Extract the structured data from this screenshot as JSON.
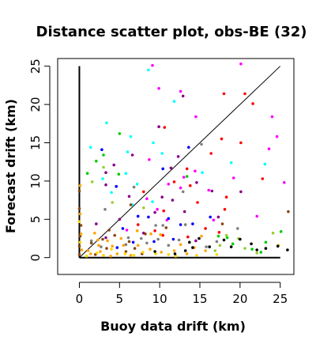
{
  "chart_data": {
    "type": "scatter",
    "title": "Distance scatter plot, obs-BE (32)",
    "xlabel": "Buoy data drift (km)",
    "ylabel": "Forecast drift (km)",
    "xlim": [
      -2.7,
      26.7
    ],
    "ylim": [
      -2.2,
      26.0
    ],
    "xticks": [
      "0",
      "5",
      "10",
      "15",
      "20",
      "25"
    ],
    "yticks": [
      "0",
      "5",
      "10",
      "15",
      "20",
      "25"
    ],
    "grid": false,
    "legend": "none",
    "reference_lines": [
      {
        "name": "identity",
        "points": [
          [
            0,
            0
          ],
          [
            25,
            25
          ]
        ]
      },
      {
        "name": "y-axis guide",
        "points": [
          [
            0,
            0
          ],
          [
            0,
            25
          ]
        ]
      },
      {
        "name": "x-axis guide",
        "points": [
          [
            0,
            0
          ],
          [
            25,
            0
          ]
        ]
      }
    ],
    "series": [
      {
        "color": "#ff00ff",
        "points": [
          [
            9.1,
            25.1
          ],
          [
            20.1,
            25.3
          ],
          [
            9.9,
            22.1
          ],
          [
            12.6,
            21.7
          ],
          [
            24.0,
            18.4
          ],
          [
            24.6,
            15.8
          ],
          [
            14.5,
            18.4
          ],
          [
            8.7,
            12.8
          ],
          [
            13.0,
            10.5
          ],
          [
            25.5,
            9.8
          ],
          [
            14.4,
            11.3
          ],
          [
            23.6,
            14.2
          ],
          [
            16.1,
            8.8
          ],
          [
            11.1,
            9.6
          ],
          [
            19.2,
            10.4
          ],
          [
            9.7,
            6.3
          ],
          [
            12.6,
            9.1
          ],
          [
            8.4,
            7.7
          ],
          [
            10.9,
            4.9
          ],
          [
            22.1,
            5.4
          ],
          [
            16.7,
            4.9
          ],
          [
            5.9,
            3.6
          ]
        ]
      },
      {
        "color": "#ff0000",
        "points": [
          [
            20.6,
            21.4
          ],
          [
            21.6,
            20.1
          ],
          [
            18.0,
            21.4
          ],
          [
            10.6,
            17.0
          ],
          [
            17.7,
            15.5
          ],
          [
            20.1,
            15.0
          ],
          [
            16.4,
            13.6
          ],
          [
            13.4,
            11.6
          ],
          [
            13.8,
            9.4
          ],
          [
            8.0,
            8.6
          ],
          [
            11.8,
            9.9
          ],
          [
            18.3,
            7.9
          ],
          [
            18.1,
            6.3
          ],
          [
            22.8,
            10.3
          ],
          [
            14.7,
            7.2
          ],
          [
            15.7,
            3.8
          ],
          [
            9.4,
            3.5
          ],
          [
            10.5,
            6.1
          ],
          [
            7.3,
            4.3
          ],
          [
            13.5,
            2.7
          ],
          [
            17.4,
            3.3
          ],
          [
            10.4,
            2.9
          ]
        ]
      },
      {
        "color": "#00ffff",
        "points": [
          [
            8.6,
            24.5
          ],
          [
            11.8,
            20.4
          ],
          [
            3.4,
            17.6
          ],
          [
            1.4,
            14.4
          ],
          [
            6.4,
            15.8
          ],
          [
            6.0,
            13.8
          ],
          [
            9.2,
            15.0
          ],
          [
            5.8,
            11.0
          ],
          [
            10.3,
            13.6
          ],
          [
            7.2,
            9.6
          ],
          [
            15.3,
            11.1
          ],
          [
            18.9,
            12.4
          ],
          [
            23.1,
            12.2
          ],
          [
            2.9,
            10.3
          ],
          [
            4.0,
            8.5
          ],
          [
            9.1,
            7.3
          ],
          [
            6.6,
            6.9
          ]
        ]
      },
      {
        "color": "#0000ff",
        "points": [
          [
            2.8,
            14.1
          ],
          [
            13.6,
            14.4
          ],
          [
            10.4,
            11.6
          ],
          [
            8.6,
            5.3
          ],
          [
            4.6,
            9.3
          ],
          [
            7.3,
            5.4
          ],
          [
            11.1,
            5.1
          ],
          [
            5.4,
            3.8
          ],
          [
            9.3,
            2.1
          ],
          [
            14.1,
            4.4
          ],
          [
            12.6,
            4.3
          ],
          [
            16.3,
            5.3
          ],
          [
            4.7,
            1.3
          ],
          [
            6.7,
            2.0
          ],
          [
            11.7,
            2.4
          ]
        ]
      },
      {
        "color": "#7f7f7f",
        "points": [
          [
            15.2,
            14.8
          ],
          [
            6.8,
            9.2
          ],
          [
            12.9,
            8.6
          ],
          [
            3.2,
            6.3
          ],
          [
            9.5,
            4.2
          ],
          [
            7.7,
            2.5
          ],
          [
            1.5,
            2.2
          ],
          [
            6.1,
            2.6
          ],
          [
            13.2,
            4.3
          ],
          [
            10.4,
            4.2
          ],
          [
            19.7,
            3.8
          ],
          [
            17.1,
            2.1
          ],
          [
            5.8,
            1.7
          ],
          [
            2.7,
            1.4
          ],
          [
            8.4,
            1.9
          ],
          [
            11.1,
            1.6
          ],
          [
            15.8,
            1.4
          ],
          [
            12.4,
            2.3
          ],
          [
            9.8,
            2.4
          ]
        ]
      },
      {
        "color": "#00cd00",
        "points": [
          [
            5.0,
            16.2
          ],
          [
            1.0,
            11.0
          ],
          [
            2.1,
            12.6
          ],
          [
            3.0,
            13.4
          ],
          [
            4.9,
            10.9
          ],
          [
            13.4,
            10.6
          ],
          [
            17.3,
            2.8
          ],
          [
            19.1,
            1.8
          ],
          [
            21.5,
            1.1
          ],
          [
            23.2,
            2.0
          ],
          [
            25.1,
            3.4
          ],
          [
            18.4,
            2.6
          ],
          [
            22.6,
            0.7
          ]
        ]
      },
      {
        "color": "#9acd32",
        "points": [
          [
            3.0,
            11.8
          ],
          [
            1.6,
            9.9
          ],
          [
            8.0,
            6.5
          ],
          [
            4.1,
            7.2
          ],
          [
            18.3,
            2.9
          ],
          [
            17.5,
            1.6
          ],
          [
            19.8,
            2.5
          ],
          [
            22.1,
            0.6
          ],
          [
            24.1,
            3.2
          ],
          [
            16.9,
            0.9
          ],
          [
            20.6,
            1.2
          ]
        ]
      },
      {
        "color": "#8b008b",
        "points": [
          [
            9.9,
            17.1
          ],
          [
            12.9,
            21.1
          ],
          [
            6.6,
            13.4
          ],
          [
            3.3,
            11.1
          ],
          [
            4.3,
            12.1
          ],
          [
            12.3,
            13.2
          ],
          [
            11.4,
            11.7
          ],
          [
            14.6,
            9.8
          ],
          [
            3.3,
            9.5
          ],
          [
            6.2,
            8.0
          ],
          [
            11.6,
            7.5
          ],
          [
            5.0,
            5.0
          ],
          [
            9.4,
            5.9
          ],
          [
            13.1,
            6.0
          ],
          [
            16.5,
            8.7
          ],
          [
            20.1,
            8.6
          ],
          [
            10.3,
            7.9
          ],
          [
            8.0,
            3.2
          ],
          [
            3.3,
            2.6
          ],
          [
            2.1,
            4.4
          ],
          [
            17.3,
            5.3
          ],
          [
            14.5,
            2.2
          ]
        ]
      },
      {
        "color": "#8b4513",
        "points": [
          [
            0.0,
            8.7
          ],
          [
            0.0,
            6.4
          ],
          [
            0.2,
            4.2
          ],
          [
            0.1,
            2.8
          ],
          [
            0.0,
            1.5
          ],
          [
            0.0,
            0.4
          ],
          [
            2.0,
            0.4
          ],
          [
            3.4,
            1.2
          ],
          [
            4.4,
            2.9
          ],
          [
            3.7,
            3.6
          ],
          [
            6.2,
            2.1
          ],
          [
            2.9,
            2.4
          ],
          [
            6.4,
            6.9
          ],
          [
            8.2,
            3.1
          ],
          [
            10.8,
            3.9
          ],
          [
            6.9,
            1.2
          ],
          [
            5.8,
            0.8
          ],
          [
            1.5,
            1.9
          ],
          [
            26.0,
            6.0
          ],
          [
            17.8,
            4.4
          ],
          [
            7.8,
            0.5
          ]
        ]
      },
      {
        "color": "#ffa500",
        "points": [
          [
            0.1,
            9.4
          ],
          [
            0.1,
            5.7
          ],
          [
            0.2,
            3.1
          ],
          [
            0.3,
            1.0
          ],
          [
            1.4,
            0.5
          ],
          [
            2.4,
            1.6
          ],
          [
            3.5,
            2.2
          ],
          [
            2.6,
            0.8
          ],
          [
            4.7,
            0.5
          ],
          [
            4.1,
            1.5
          ],
          [
            5.2,
            2.5
          ],
          [
            1.9,
            3.2
          ],
          [
            5.5,
            1.6
          ],
          [
            6.4,
            0.3
          ],
          [
            7.3,
            1.6
          ],
          [
            8.8,
            1.1
          ],
          [
            10.2,
            0.7
          ],
          [
            11.8,
            0.9
          ],
          [
            13.4,
            0.5
          ],
          [
            15.7,
            0.9
          ],
          [
            15.2,
            2.8
          ],
          [
            14.3,
            1.3
          ],
          [
            12.6,
            1.7
          ],
          [
            8.9,
            3.1
          ],
          [
            7.2,
            3.5
          ],
          [
            10.1,
            3.0
          ],
          [
            1.1,
            0.9
          ],
          [
            3.9,
            0.2
          ],
          [
            2.3,
            2.3
          ]
        ]
      },
      {
        "color": "#ffd700",
        "points": [
          [
            0.0,
            4.7
          ],
          [
            0.1,
            2.0
          ],
          [
            0.9,
            0.2
          ],
          [
            2.2,
            0.6
          ],
          [
            4.0,
            1.1
          ],
          [
            3.0,
            0.3
          ],
          [
            5.7,
            0.5
          ],
          [
            7.9,
            0.7
          ],
          [
            9.5,
            0.5
          ],
          [
            12.0,
            0.2
          ],
          [
            24.8,
            1.6
          ],
          [
            14.6,
            0.3
          ],
          [
            17.1,
            0.4
          ],
          [
            6.8,
            0.3
          ],
          [
            11.1,
            0.4
          ]
        ]
      },
      {
        "color": "#000000",
        "points": [
          [
            14.1,
            1.3
          ],
          [
            13.7,
            2.0
          ],
          [
            14.9,
            2.5
          ],
          [
            18.0,
            2.3
          ],
          [
            18.9,
            1.4
          ],
          [
            20.0,
            2.4
          ],
          [
            21.4,
            1.8
          ],
          [
            23.2,
            1.2
          ],
          [
            24.7,
            1.5
          ],
          [
            25.9,
            1.0
          ],
          [
            13.2,
            0.9
          ],
          [
            9.4,
            0.8
          ],
          [
            22.1,
            1.0
          ],
          [
            16.2,
            1.4
          ],
          [
            11.9,
            0.5
          ]
        ]
      }
    ]
  }
}
